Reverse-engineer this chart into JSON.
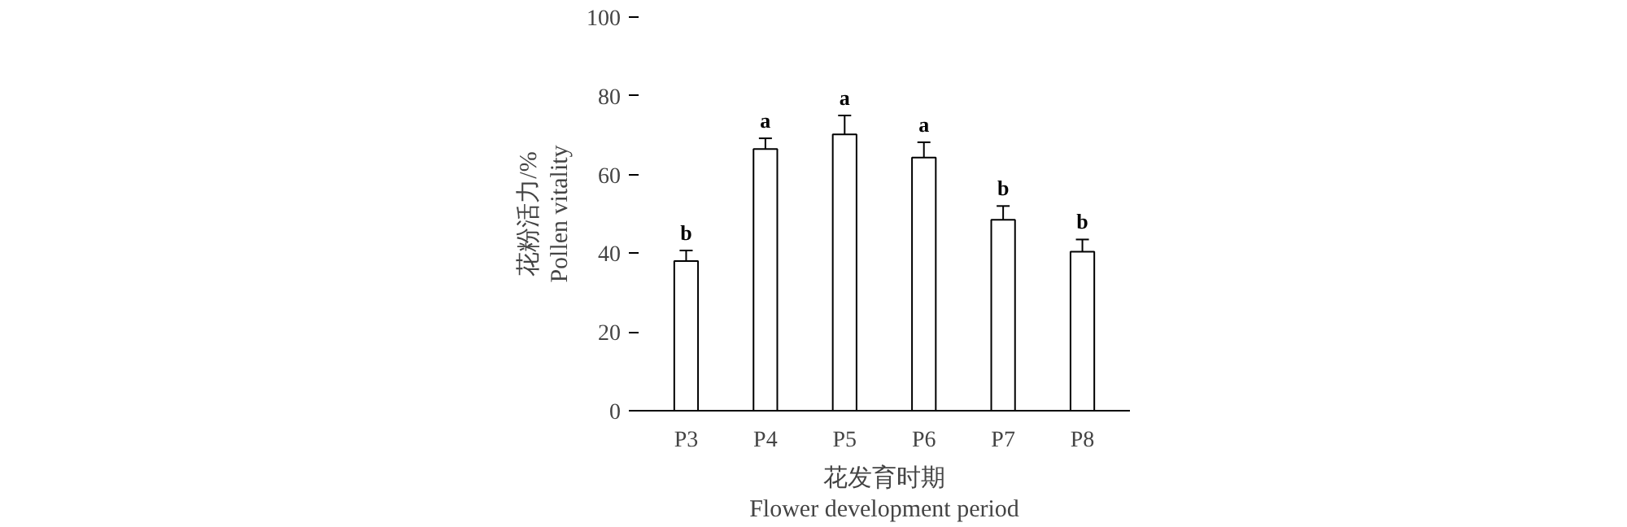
{
  "chart_data": {
    "type": "bar",
    "categories": [
      "P3",
      "P4",
      "P5",
      "P6",
      "P7",
      "P8"
    ],
    "values": [
      38,
      66.5,
      70.2,
      64.3,
      48.5,
      40.4
    ],
    "errors": [
      2.7,
      2.7,
      4.8,
      3.9,
      3.5,
      3.1
    ],
    "color": "#ffffff",
    "ylim": [
      0,
      100
    ],
    "yticks": [
      0,
      20,
      40,
      60,
      80,
      100
    ],
    "xlabel": "花发育时期\nFlower development period",
    "ylabel": "花粉活力/%\nPollen vitality",
    "annotations": [
      "b",
      "a",
      "a",
      "a",
      "b",
      "b"
    ],
    "grid": false
  }
}
